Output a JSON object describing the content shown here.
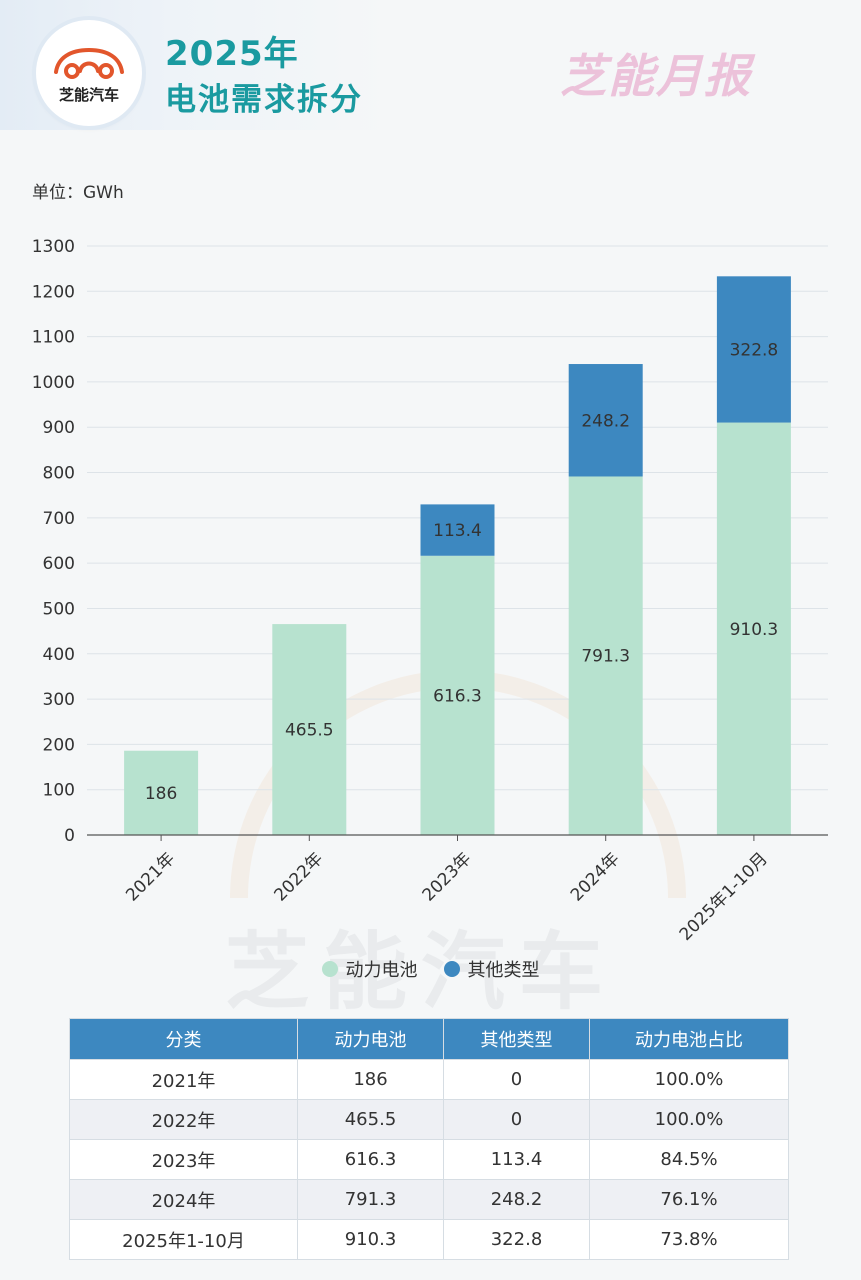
{
  "header": {
    "logo_text": "芝能汽车",
    "title_line1": "2025年",
    "title_line2": "电池需求拆分",
    "brand": "芝能月报"
  },
  "unit": "单位：GWh",
  "watermark": "芝能汽车",
  "colors": {
    "title": "#1a9aa0",
    "power_battery": "#b7e2cf",
    "other_types": "#3d88c0",
    "table_header": "#3d88c0"
  },
  "chart_data": {
    "type": "bar",
    "stacked": true,
    "categories": [
      "2021年",
      "2022年",
      "2023年",
      "2024年",
      "2025年1-10月"
    ],
    "series": [
      {
        "name": "动力电池",
        "values": [
          186,
          465.5,
          616.3,
          791.3,
          910.3
        ],
        "color": "#b7e2cf"
      },
      {
        "name": "其他类型",
        "values": [
          0,
          0,
          113.4,
          248.2,
          322.8
        ],
        "color": "#3d88c0"
      }
    ],
    "ylim": [
      0,
      1300
    ],
    "yticks": [
      0,
      100,
      200,
      300,
      400,
      500,
      600,
      700,
      800,
      900,
      1000,
      1100,
      1200,
      1300
    ],
    "grid": true,
    "legend": "bottom"
  },
  "legend": [
    {
      "label": "动力电池",
      "color": "#b7e2cf"
    },
    {
      "label": "其他类型",
      "color": "#3d88c0"
    }
  ],
  "table": {
    "headers": [
      "分类",
      "动力电池",
      "其他类型",
      "动力电池占比"
    ],
    "rows": [
      [
        "2021年",
        "186",
        "0",
        "100.0%"
      ],
      [
        "2022年",
        "465.5",
        "0",
        "100.0%"
      ],
      [
        "2023年",
        "616.3",
        "113.4",
        "84.5%"
      ],
      [
        "2024年",
        "791.3",
        "248.2",
        "76.1%"
      ],
      [
        "2025年1-10月",
        "910.3",
        "322.8",
        "73.8%"
      ]
    ]
  }
}
